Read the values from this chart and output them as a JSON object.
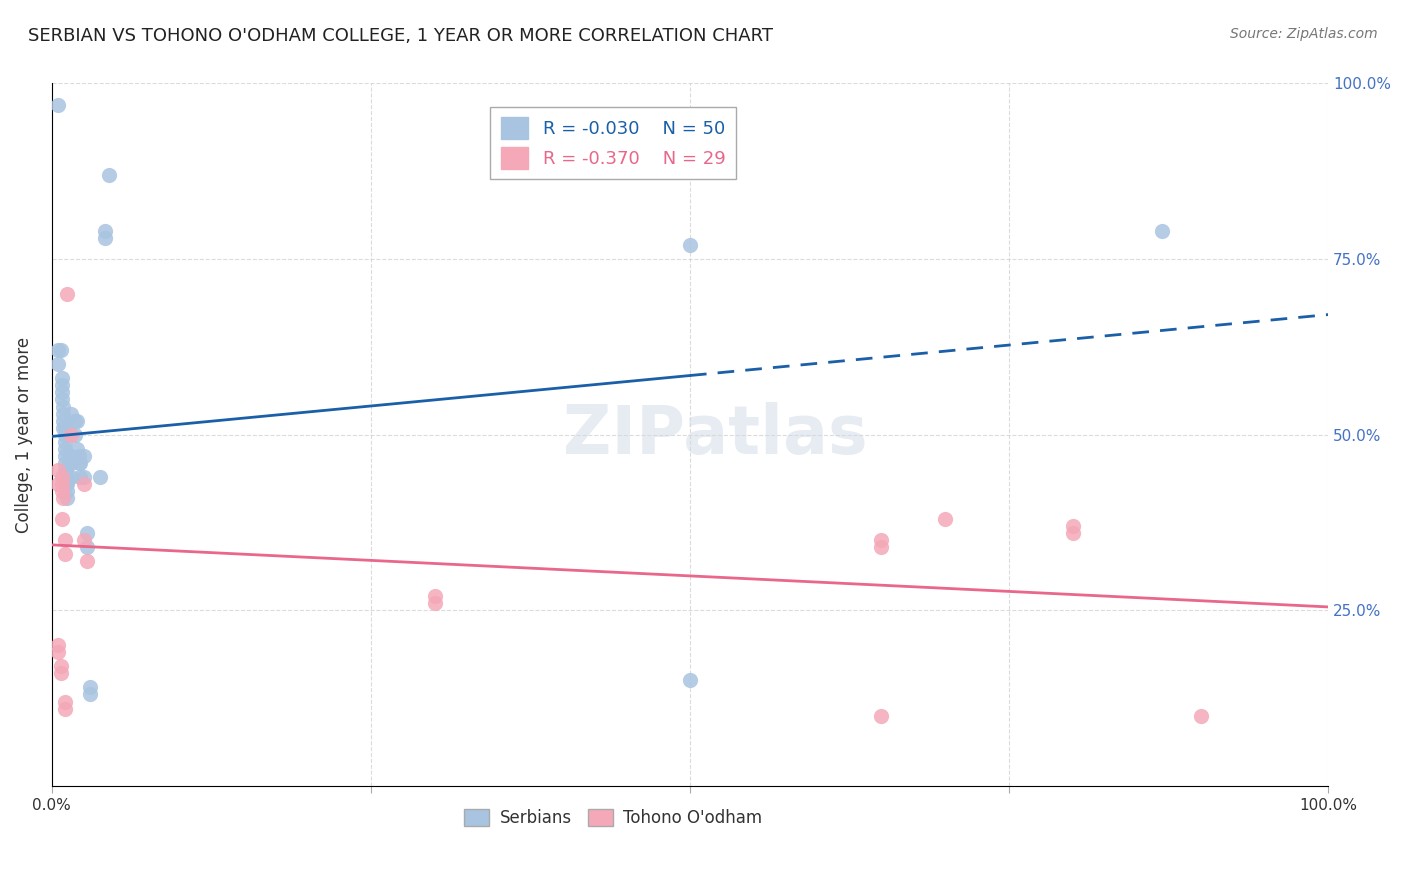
{
  "title": "SERBIAN VS TOHONO O'ODHAM COLLEGE, 1 YEAR OR MORE CORRELATION CHART",
  "source": "Source: ZipAtlas.com",
  "xlabel": "",
  "ylabel": "College, 1 year or more",
  "xlim": [
    0,
    1
  ],
  "ylim": [
    0,
    1
  ],
  "x_ticks": [
    0,
    0.25,
    0.5,
    0.75,
    1.0
  ],
  "x_tick_labels": [
    "0.0%",
    "",
    "",
    "",
    "100.0%"
  ],
  "y_tick_labels_right": [
    "100.0%",
    "75.0%",
    "50.0%",
    "25.0%",
    ""
  ],
  "watermark": "ZIPatlas",
  "legend_R_serbian": "-0.030",
  "legend_N_serbian": "50",
  "legend_R_tohono": "-0.370",
  "legend_N_tohono": "29",
  "serbian_color": "#a8c4e0",
  "tohono_color": "#f4a8b8",
  "serbian_line_color": "#1a5fa8",
  "tohono_line_color": "#e8678a",
  "serbian_scatter": [
    [
      0.005,
      0.97
    ],
    [
      0.005,
      0.62
    ],
    [
      0.005,
      0.6
    ],
    [
      0.007,
      0.62
    ],
    [
      0.008,
      0.58
    ],
    [
      0.008,
      0.57
    ],
    [
      0.008,
      0.56
    ],
    [
      0.008,
      0.55
    ],
    [
      0.009,
      0.54
    ],
    [
      0.009,
      0.53
    ],
    [
      0.009,
      0.52
    ],
    [
      0.009,
      0.51
    ],
    [
      0.01,
      0.51
    ],
    [
      0.01,
      0.5
    ],
    [
      0.01,
      0.49
    ],
    [
      0.01,
      0.48
    ],
    [
      0.01,
      0.47
    ],
    [
      0.01,
      0.46
    ],
    [
      0.01,
      0.45
    ],
    [
      0.011,
      0.45
    ],
    [
      0.011,
      0.44
    ],
    [
      0.011,
      0.43
    ],
    [
      0.012,
      0.43
    ],
    [
      0.012,
      0.42
    ],
    [
      0.012,
      0.41
    ],
    [
      0.015,
      0.53
    ],
    [
      0.015,
      0.47
    ],
    [
      0.015,
      0.46
    ],
    [
      0.015,
      0.44
    ],
    [
      0.018,
      0.52
    ],
    [
      0.018,
      0.5
    ],
    [
      0.02,
      0.52
    ],
    [
      0.02,
      0.48
    ],
    [
      0.021,
      0.47
    ],
    [
      0.021,
      0.46
    ],
    [
      0.022,
      0.46
    ],
    [
      0.022,
      0.44
    ],
    [
      0.025,
      0.47
    ],
    [
      0.025,
      0.44
    ],
    [
      0.028,
      0.36
    ],
    [
      0.028,
      0.34
    ],
    [
      0.03,
      0.14
    ],
    [
      0.03,
      0.13
    ],
    [
      0.038,
      0.44
    ],
    [
      0.042,
      0.79
    ],
    [
      0.042,
      0.78
    ],
    [
      0.045,
      0.87
    ],
    [
      0.5,
      0.77
    ],
    [
      0.5,
      0.15
    ],
    [
      0.87,
      0.79
    ]
  ],
  "tohono_scatter": [
    [
      0.005,
      0.45
    ],
    [
      0.005,
      0.43
    ],
    [
      0.005,
      0.2
    ],
    [
      0.005,
      0.19
    ],
    [
      0.007,
      0.17
    ],
    [
      0.007,
      0.16
    ],
    [
      0.008,
      0.44
    ],
    [
      0.008,
      0.43
    ],
    [
      0.008,
      0.42
    ],
    [
      0.008,
      0.38
    ],
    [
      0.009,
      0.41
    ],
    [
      0.01,
      0.35
    ],
    [
      0.01,
      0.33
    ],
    [
      0.01,
      0.12
    ],
    [
      0.01,
      0.11
    ],
    [
      0.012,
      0.7
    ],
    [
      0.015,
      0.5
    ],
    [
      0.025,
      0.43
    ],
    [
      0.025,
      0.35
    ],
    [
      0.028,
      0.32
    ],
    [
      0.3,
      0.27
    ],
    [
      0.3,
      0.26
    ],
    [
      0.65,
      0.35
    ],
    [
      0.65,
      0.34
    ],
    [
      0.65,
      0.1
    ],
    [
      0.7,
      0.38
    ],
    [
      0.8,
      0.37
    ],
    [
      0.8,
      0.36
    ],
    [
      0.9,
      0.1
    ]
  ],
  "background_color": "#ffffff",
  "grid_color": "#cccccc"
}
